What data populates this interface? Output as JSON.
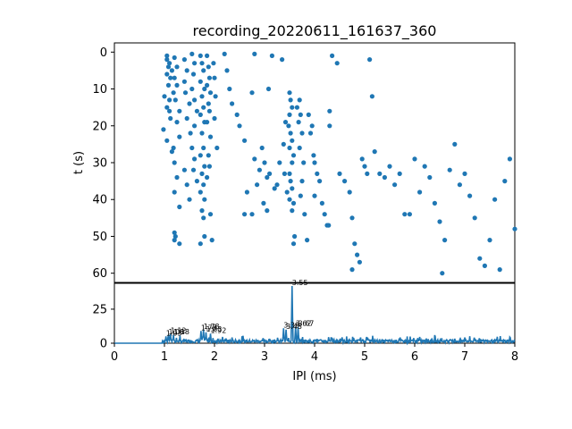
{
  "chart_data": [
    {
      "type": "scatter",
      "title": "recording_20220611_161637_360",
      "xlabel": "",
      "ylabel": "t (s)",
      "xlim": [
        0,
        8
      ],
      "ylim": [
        62.5,
        -2.5
      ],
      "yticks": [
        "0",
        "10",
        "20",
        "30",
        "40",
        "50",
        "60"
      ],
      "y_inverted": true,
      "marker_color": "#1f77b4",
      "points": [
        [
          1.05,
          1
        ],
        [
          1.05,
          2
        ],
        [
          1.1,
          3
        ],
        [
          1.08,
          4
        ],
        [
          1.15,
          5
        ],
        [
          1.05,
          6
        ],
        [
          1.12,
          7
        ],
        [
          1.08,
          9
        ],
        [
          1.0,
          12
        ],
        [
          1.1,
          13
        ],
        [
          1.05,
          15
        ],
        [
          1.1,
          16
        ],
        [
          1.12,
          18
        ],
        [
          0.98,
          21
        ],
        [
          1.05,
          24
        ],
        [
          1.15,
          27
        ],
        [
          1.2,
          1.5
        ],
        [
          1.25,
          4
        ],
        [
          1.2,
          7
        ],
        [
          1.25,
          9
        ],
        [
          1.18,
          11
        ],
        [
          1.22,
          13
        ],
        [
          1.3,
          16
        ],
        [
          1.25,
          19
        ],
        [
          1.3,
          23
        ],
        [
          1.18,
          26
        ],
        [
          1.2,
          30
        ],
        [
          1.25,
          34
        ],
        [
          1.2,
          38
        ],
        [
          1.3,
          42
        ],
        [
          1.2,
          49
        ],
        [
          1.22,
          50
        ],
        [
          1.2,
          51
        ],
        [
          1.3,
          52
        ],
        [
          1.4,
          2
        ],
        [
          1.45,
          5
        ],
        [
          1.4,
          8
        ],
        [
          1.42,
          11
        ],
        [
          1.5,
          14
        ],
        [
          1.45,
          18
        ],
        [
          1.52,
          22
        ],
        [
          1.4,
          32
        ],
        [
          1.45,
          36
        ],
        [
          1.5,
          40
        ],
        [
          1.55,
          0.5
        ],
        [
          1.6,
          3
        ],
        [
          1.58,
          6
        ],
        [
          1.55,
          10
        ],
        [
          1.6,
          13
        ],
        [
          1.65,
          16
        ],
        [
          1.6,
          20
        ],
        [
          1.55,
          26
        ],
        [
          1.6,
          29
        ],
        [
          1.58,
          32
        ],
        [
          1.65,
          35
        ],
        [
          1.72,
          1
        ],
        [
          1.75,
          3
        ],
        [
          1.78,
          5
        ],
        [
          1.72,
          8
        ],
        [
          1.8,
          10
        ],
        [
          1.75,
          12
        ],
        [
          1.78,
          15
        ],
        [
          1.72,
          17
        ],
        [
          1.8,
          19
        ],
        [
          1.75,
          22
        ],
        [
          1.78,
          26
        ],
        [
          1.72,
          28
        ],
        [
          1.8,
          31
        ],
        [
          1.75,
          33
        ],
        [
          1.78,
          36
        ],
        [
          1.72,
          38
        ],
        [
          1.8,
          40
        ],
        [
          1.75,
          43
        ],
        [
          1.78,
          45
        ],
        [
          1.8,
          50
        ],
        [
          1.72,
          52
        ],
        [
          1.85,
          1
        ],
        [
          1.88,
          4
        ],
        [
          1.9,
          7
        ],
        [
          1.85,
          9
        ],
        [
          1.92,
          11
        ],
        [
          1.88,
          14
        ],
        [
          1.9,
          16
        ],
        [
          1.85,
          19
        ],
        [
          1.92,
          23
        ],
        [
          1.88,
          28
        ],
        [
          1.9,
          31
        ],
        [
          1.85,
          34
        ],
        [
          1.92,
          44
        ],
        [
          1.95,
          51
        ],
        [
          1.98,
          3
        ],
        [
          2.0,
          7
        ],
        [
          2.02,
          12
        ],
        [
          2.0,
          18
        ],
        [
          2.05,
          26
        ],
        [
          2.2,
          0.5
        ],
        [
          2.25,
          5
        ],
        [
          2.3,
          10
        ],
        [
          2.35,
          14
        ],
        [
          2.45,
          17
        ],
        [
          2.5,
          20
        ],
        [
          2.6,
          24
        ],
        [
          2.6,
          44
        ],
        [
          2.75,
          44
        ],
        [
          2.8,
          0.5
        ],
        [
          2.75,
          11
        ],
        [
          2.8,
          29
        ],
        [
          2.65,
          38
        ],
        [
          2.85,
          36
        ],
        [
          2.9,
          32
        ],
        [
          2.95,
          26
        ],
        [
          3.0,
          30
        ],
        [
          3.05,
          34
        ],
        [
          2.98,
          41
        ],
        [
          3.05,
          43
        ],
        [
          3.08,
          10
        ],
        [
          3.1,
          33
        ],
        [
          3.15,
          1
        ],
        [
          3.2,
          37
        ],
        [
          3.25,
          36
        ],
        [
          3.3,
          30
        ],
        [
          3.35,
          2
        ],
        [
          3.38,
          25
        ],
        [
          3.4,
          33
        ],
        [
          3.42,
          19
        ],
        [
          3.45,
          38
        ],
        [
          3.5,
          11
        ],
        [
          3.52,
          13
        ],
        [
          3.55,
          15
        ],
        [
          3.5,
          17
        ],
        [
          3.48,
          20
        ],
        [
          3.52,
          22
        ],
        [
          3.55,
          24
        ],
        [
          3.5,
          26
        ],
        [
          3.58,
          28
        ],
        [
          3.55,
          30
        ],
        [
          3.5,
          33
        ],
        [
          3.52,
          35
        ],
        [
          3.55,
          37
        ],
        [
          3.5,
          40
        ],
        [
          3.58,
          41
        ],
        [
          3.55,
          43
        ],
        [
          3.6,
          50
        ],
        [
          3.58,
          52
        ],
        [
          3.65,
          15
        ],
        [
          3.7,
          13
        ],
        [
          3.68,
          19
        ],
        [
          3.72,
          17
        ],
        [
          3.75,
          22
        ],
        [
          3.7,
          26
        ],
        [
          3.78,
          30
        ],
        [
          3.75,
          35
        ],
        [
          3.72,
          39
        ],
        [
          3.8,
          44
        ],
        [
          3.85,
          51
        ],
        [
          3.88,
          17
        ],
        [
          3.92,
          22
        ],
        [
          3.95,
          20
        ],
        [
          3.98,
          28
        ],
        [
          4.0,
          30
        ],
        [
          4.05,
          33
        ],
        [
          4.1,
          35
        ],
        [
          4.0,
          39
        ],
        [
          4.15,
          41
        ],
        [
          4.2,
          44
        ],
        [
          4.25,
          47
        ],
        [
          4.28,
          47
        ],
        [
          4.3,
          16
        ],
        [
          4.3,
          20
        ],
        [
          4.35,
          1
        ],
        [
          4.45,
          3
        ],
        [
          4.5,
          33
        ],
        [
          4.6,
          35
        ],
        [
          4.7,
          38
        ],
        [
          4.75,
          45
        ],
        [
          4.8,
          52
        ],
        [
          4.75,
          59
        ],
        [
          4.85,
          55
        ],
        [
          4.9,
          57
        ],
        [
          4.95,
          29
        ],
        [
          5.0,
          31
        ],
        [
          5.05,
          33
        ],
        [
          5.1,
          2
        ],
        [
          5.15,
          12
        ],
        [
          5.2,
          27
        ],
        [
          5.3,
          33
        ],
        [
          5.4,
          34
        ],
        [
          5.5,
          31
        ],
        [
          5.6,
          36
        ],
        [
          5.7,
          33
        ],
        [
          5.8,
          44
        ],
        [
          5.9,
          44
        ],
        [
          6.0,
          29
        ],
        [
          6.1,
          38
        ],
        [
          6.2,
          31
        ],
        [
          6.3,
          34
        ],
        [
          6.4,
          41
        ],
        [
          6.5,
          46
        ],
        [
          6.55,
          60
        ],
        [
          6.6,
          51
        ],
        [
          6.7,
          32
        ],
        [
          6.8,
          25
        ],
        [
          6.9,
          36
        ],
        [
          7.0,
          33
        ],
        [
          7.1,
          39
        ],
        [
          7.2,
          45
        ],
        [
          7.3,
          56
        ],
        [
          7.4,
          58
        ],
        [
          7.5,
          51
        ],
        [
          7.6,
          40
        ],
        [
          7.7,
          59
        ],
        [
          7.8,
          35
        ],
        [
          7.9,
          29
        ],
        [
          8.0,
          48
        ]
      ]
    },
    {
      "type": "line",
      "xlabel": "IPI (ms)",
      "ylabel": "",
      "xlim": [
        0,
        8
      ],
      "ylim": [
        0,
        44
      ],
      "xticks": [
        "0",
        "1",
        "2",
        "3",
        "4",
        "5",
        "6",
        "7",
        "8"
      ],
      "yticks": [
        "0",
        "25"
      ],
      "line_color": "#1f77b4",
      "peak_labels": [
        "1.03",
        "1.08",
        "1.12",
        "1.18",
        "1.73",
        "1.78",
        "1.83",
        "1.92",
        "3.38",
        "3.43",
        "3.55",
        "3.62",
        "3.67"
      ],
      "peaks": [
        [
          1.03,
          5
        ],
        [
          1.08,
          6
        ],
        [
          1.12,
          7
        ],
        [
          1.18,
          6
        ],
        [
          1.73,
          9
        ],
        [
          1.78,
          10
        ],
        [
          1.83,
          8
        ],
        [
          1.92,
          7
        ],
        [
          3.38,
          11
        ],
        [
          3.43,
          10
        ],
        [
          3.55,
          42
        ],
        [
          3.62,
          12
        ],
        [
          3.67,
          12
        ]
      ]
    }
  ]
}
